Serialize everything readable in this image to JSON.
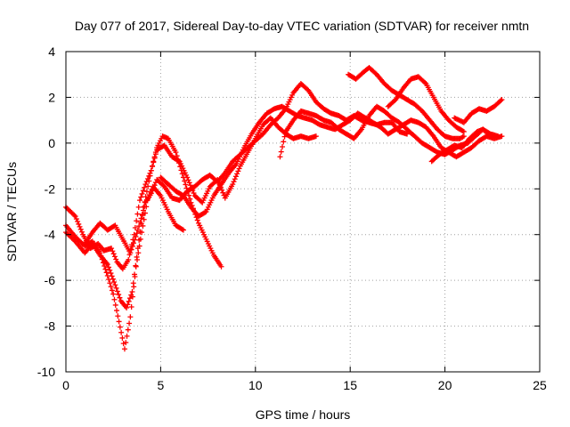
{
  "chart_data": {
    "type": "scatter",
    "title": "Day 077 of 2017, Sidereal Day-to-day VTEC variation (SDTVAR) for receiver nmtn",
    "xlabel": "GPS time / hours",
    "ylabel": "SDTVAR / TECUs",
    "xlim": [
      0,
      25
    ],
    "ylim": [
      -10,
      4
    ],
    "xticks": [
      0,
      5,
      10,
      15,
      20,
      25
    ],
    "yticks": [
      -10,
      -8,
      -6,
      -4,
      -2,
      0,
      2,
      4
    ],
    "grid": true,
    "marker": "plus",
    "color": "#ff0000",
    "series": [
      {
        "points": [
          [
            0.0,
            -2.8
          ],
          [
            0.5,
            -3.2
          ],
          [
            0.9,
            -4.0
          ],
          [
            1.3,
            -4.6
          ],
          [
            1.7,
            -4.4
          ],
          [
            2.0,
            -4.7
          ],
          [
            2.4,
            -4.6
          ],
          [
            2.7,
            -5.2
          ],
          [
            3.0,
            -5.5
          ],
          [
            3.3,
            -5.1
          ],
          [
            3.6,
            -4.0
          ],
          [
            3.9,
            -2.5
          ],
          [
            4.2,
            -1.8
          ],
          [
            4.5,
            -1.2
          ],
          [
            4.8,
            -0.2
          ],
          [
            5.1,
            0.3
          ],
          [
            5.4,
            0.2
          ],
          [
            5.8,
            -0.4
          ],
          [
            6.2,
            -1.5
          ],
          [
            6.6,
            -2.6
          ],
          [
            7.0,
            -3.5
          ],
          [
            7.4,
            -4.2
          ],
          [
            7.8,
            -4.9
          ],
          [
            8.2,
            -5.4
          ]
        ]
      },
      {
        "points": [
          [
            0.0,
            -3.6
          ],
          [
            0.5,
            -4.1
          ],
          [
            1.0,
            -4.5
          ],
          [
            1.4,
            -4.3
          ],
          [
            1.8,
            -4.8
          ],
          [
            2.2,
            -5.8
          ],
          [
            2.5,
            -6.6
          ],
          [
            2.8,
            -7.8
          ],
          [
            3.1,
            -9.0
          ],
          [
            3.4,
            -7.6
          ],
          [
            3.7,
            -5.4
          ],
          [
            4.0,
            -3.9
          ],
          [
            4.3,
            -2.5
          ],
          [
            4.6,
            -1.9
          ],
          [
            5.0,
            -2.3
          ],
          [
            5.4,
            -3.0
          ],
          [
            5.8,
            -3.6
          ],
          [
            6.2,
            -3.8
          ]
        ]
      },
      {
        "points": [
          [
            0.0,
            -3.9
          ],
          [
            0.5,
            -4.3
          ],
          [
            1.0,
            -4.8
          ],
          [
            1.4,
            -4.4
          ],
          [
            1.8,
            -4.9
          ],
          [
            2.2,
            -5.3
          ],
          [
            2.6,
            -6.2
          ],
          [
            2.9,
            -6.9
          ],
          [
            3.2,
            -7.2
          ],
          [
            3.5,
            -6.5
          ],
          [
            3.8,
            -4.6
          ],
          [
            4.1,
            -2.8
          ],
          [
            4.5,
            -1.2
          ],
          [
            4.8,
            -0.3
          ],
          [
            5.2,
            -0.1
          ],
          [
            5.6,
            -0.6
          ],
          [
            6.0,
            -0.8
          ],
          [
            6.4,
            -1.5
          ],
          [
            6.8,
            -2.3
          ],
          [
            7.2,
            -2.6
          ],
          [
            7.6,
            -1.9
          ],
          [
            8.0,
            -1.6
          ],
          [
            8.4,
            -2.4
          ],
          [
            8.8,
            -1.8
          ],
          [
            9.2,
            -1.0
          ],
          [
            9.6,
            -0.4
          ],
          [
            10.0,
            0.2
          ],
          [
            10.4,
            0.8
          ],
          [
            10.8,
            1.1
          ],
          [
            11.2,
            0.7
          ],
          [
            11.6,
            0.4
          ],
          [
            12.0,
            0.2
          ],
          [
            12.4,
            0.3
          ],
          [
            12.8,
            0.2
          ],
          [
            13.2,
            0.3
          ]
        ]
      },
      {
        "points": [
          [
            1.0,
            -4.4
          ],
          [
            1.4,
            -3.9
          ],
          [
            1.8,
            -3.5
          ],
          [
            2.2,
            -3.8
          ],
          [
            2.6,
            -3.6
          ],
          [
            3.0,
            -4.2
          ],
          [
            3.4,
            -4.8
          ],
          [
            3.8,
            -3.8
          ],
          [
            4.2,
            -2.6
          ],
          [
            4.5,
            -2.2
          ],
          [
            4.8,
            -1.6
          ],
          [
            5.2,
            -1.9
          ],
          [
            5.6,
            -2.4
          ],
          [
            6.0,
            -2.5
          ],
          [
            6.4,
            -2.1
          ],
          [
            6.8,
            -1.9
          ],
          [
            7.2,
            -1.6
          ],
          [
            7.6,
            -1.4
          ],
          [
            8.0,
            -1.7
          ],
          [
            8.4,
            -1.3
          ],
          [
            8.8,
            -0.8
          ],
          [
            9.2,
            -0.5
          ],
          [
            9.6,
            -0.2
          ],
          [
            10.0,
            0.1
          ],
          [
            10.4,
            0.4
          ],
          [
            10.8,
            0.8
          ],
          [
            11.2,
            1.1
          ],
          [
            11.6,
            1.5
          ],
          [
            12.0,
            2.2
          ],
          [
            12.4,
            2.6
          ],
          [
            12.8,
            2.3
          ],
          [
            13.2,
            1.8
          ],
          [
            13.6,
            1.5
          ],
          [
            14.0,
            1.3
          ],
          [
            14.4,
            1.2
          ],
          [
            14.8,
            1.0
          ],
          [
            15.2,
            1.2
          ],
          [
            15.6,
            1.0
          ],
          [
            16.0,
            0.9
          ],
          [
            16.4,
            0.8
          ],
          [
            16.8,
            0.9
          ],
          [
            17.2,
            0.9
          ],
          [
            17.6,
            0.5
          ],
          [
            18.0,
            0.4
          ]
        ]
      },
      {
        "points": [
          [
            5.0,
            -1.5
          ],
          [
            5.4,
            -1.8
          ],
          [
            5.8,
            -2.1
          ],
          [
            6.2,
            -2.3
          ],
          [
            6.6,
            -2.8
          ],
          [
            7.0,
            -3.2
          ],
          [
            7.4,
            -3.0
          ],
          [
            7.8,
            -2.3
          ],
          [
            8.2,
            -1.8
          ],
          [
            8.6,
            -1.3
          ],
          [
            9.0,
            -0.9
          ],
          [
            9.4,
            -0.2
          ],
          [
            9.8,
            0.4
          ],
          [
            10.2,
            0.9
          ],
          [
            10.6,
            1.3
          ],
          [
            11.0,
            1.5
          ],
          [
            11.4,
            1.6
          ],
          [
            11.8,
            1.4
          ],
          [
            12.2,
            1.2
          ],
          [
            12.6,
            1.1
          ],
          [
            13.0,
            1.0
          ],
          [
            13.4,
            0.8
          ],
          [
            13.8,
            0.7
          ],
          [
            14.2,
            0.6
          ],
          [
            14.6,
            0.8
          ],
          [
            15.0,
            1.0
          ],
          [
            15.4,
            1.3
          ],
          [
            15.8,
            1.1
          ],
          [
            16.2,
            0.9
          ],
          [
            16.6,
            0.7
          ],
          [
            17.0,
            0.4
          ],
          [
            17.4,
            0.6
          ],
          [
            17.8,
            0.8
          ],
          [
            18.2,
            1.0
          ],
          [
            18.6,
            0.9
          ],
          [
            19.0,
            0.7
          ],
          [
            19.4,
            0.3
          ],
          [
            19.8,
            -0.2
          ],
          [
            20.2,
            -0.4
          ],
          [
            20.6,
            -0.6
          ],
          [
            21.0,
            -0.4
          ],
          [
            21.4,
            -0.2
          ],
          [
            21.8,
            0.1
          ],
          [
            22.2,
            0.3
          ],
          [
            22.6,
            0.2
          ],
          [
            23.0,
            0.3
          ]
        ]
      },
      {
        "points": [
          [
            11.3,
            -0.6
          ],
          [
            11.6,
            0.5
          ],
          [
            12.0,
            1.0
          ],
          [
            12.4,
            1.4
          ],
          [
            12.8,
            1.3
          ],
          [
            13.2,
            1.2
          ],
          [
            13.6,
            1.0
          ],
          [
            14.0,
            0.9
          ],
          [
            14.4,
            0.6
          ],
          [
            14.8,
            0.4
          ],
          [
            15.2,
            0.2
          ],
          [
            15.6,
            0.6
          ],
          [
            16.0,
            1.2
          ],
          [
            16.4,
            1.6
          ],
          [
            16.8,
            1.4
          ],
          [
            17.2,
            1.1
          ],
          [
            17.6,
            0.9
          ],
          [
            18.0,
            0.6
          ],
          [
            18.4,
            0.3
          ],
          [
            18.8,
            0.0
          ],
          [
            19.2,
            -0.2
          ],
          [
            19.6,
            -0.4
          ],
          [
            20.0,
            -0.5
          ],
          [
            20.4,
            -0.3
          ],
          [
            20.8,
            -0.1
          ],
          [
            21.2,
            0.0
          ],
          [
            21.6,
            0.3
          ],
          [
            22.0,
            0.6
          ],
          [
            22.4,
            0.4
          ],
          [
            22.8,
            0.3
          ]
        ]
      },
      {
        "points": [
          [
            14.9,
            3.0
          ],
          [
            15.3,
            2.8
          ],
          [
            15.7,
            3.1
          ],
          [
            16.0,
            3.3
          ],
          [
            16.4,
            3.0
          ],
          [
            16.8,
            2.6
          ],
          [
            17.2,
            2.3
          ],
          [
            17.6,
            2.1
          ],
          [
            18.0,
            1.9
          ],
          [
            18.4,
            1.7
          ],
          [
            18.8,
            1.4
          ],
          [
            19.2,
            1.0
          ],
          [
            19.6,
            0.6
          ],
          [
            20.0,
            0.3
          ],
          [
            20.4,
            0.2
          ],
          [
            20.8,
            0.2
          ],
          [
            21.0,
            0.3
          ]
        ]
      },
      {
        "points": [
          [
            17.0,
            1.6
          ],
          [
            17.4,
            1.9
          ],
          [
            17.8,
            2.4
          ],
          [
            18.2,
            2.8
          ],
          [
            18.6,
            2.9
          ],
          [
            19.0,
            2.6
          ],
          [
            19.4,
            2.0
          ],
          [
            19.8,
            1.4
          ],
          [
            20.2,
            1.0
          ],
          [
            20.6,
            0.7
          ],
          [
            21.0,
            0.5
          ]
        ]
      },
      {
        "points": [
          [
            20.5,
            1.1
          ],
          [
            21.0,
            0.9
          ],
          [
            21.4,
            1.3
          ],
          [
            21.8,
            1.5
          ],
          [
            22.2,
            1.4
          ],
          [
            22.6,
            1.6
          ],
          [
            23.0,
            1.9
          ]
        ]
      },
      {
        "points": [
          [
            19.3,
            -0.8
          ],
          [
            19.7,
            -0.5
          ],
          [
            20.1,
            -0.3
          ],
          [
            20.5,
            -0.1
          ],
          [
            20.9,
            -0.2
          ],
          [
            21.3,
            0.2
          ],
          [
            21.7,
            0.5
          ],
          [
            22.0,
            0.6
          ],
          [
            22.3,
            0.4
          ]
        ]
      }
    ]
  }
}
